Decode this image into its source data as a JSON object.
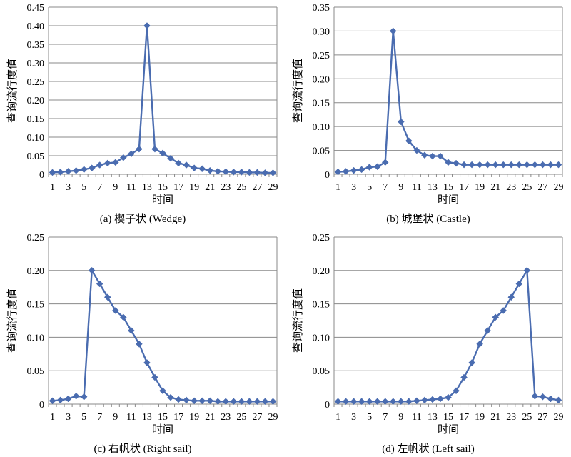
{
  "chart_data": [
    {
      "type": "line",
      "caption": "(a) 楔子状 (Wedge)",
      "xlabel": "时间",
      "ylabel": "查询流行度值",
      "ylim": [
        0,
        0.45
      ],
      "yticks": [
        "0",
        "0.05",
        "0.10",
        "0.15",
        "0.20",
        "0.25",
        "0.30",
        "0.35",
        "0.40",
        "0.45"
      ],
      "x": [
        1,
        2,
        3,
        4,
        5,
        6,
        7,
        8,
        9,
        10,
        11,
        12,
        13,
        14,
        15,
        16,
        17,
        18,
        19,
        20,
        21,
        22,
        23,
        24,
        25,
        26,
        27,
        28,
        29
      ],
      "xticks": [
        "1",
        "3",
        "5",
        "7",
        "9",
        "11",
        "13",
        "15",
        "17",
        "19",
        "21",
        "23",
        "25",
        "27",
        "29"
      ],
      "values": [
        0.005,
        0.006,
        0.008,
        0.01,
        0.013,
        0.017,
        0.025,
        0.03,
        0.032,
        0.045,
        0.055,
        0.068,
        0.4,
        0.068,
        0.057,
        0.043,
        0.03,
        0.025,
        0.017,
        0.015,
        0.01,
        0.008,
        0.007,
        0.006,
        0.006,
        0.005,
        0.005,
        0.004,
        0.004
      ],
      "grid": true,
      "color": "#4a6cb0"
    },
    {
      "type": "line",
      "caption": "(b) 城堡状 (Castle)",
      "xlabel": "时间",
      "ylabel": "查询流行度值",
      "ylim": [
        0,
        0.35
      ],
      "yticks": [
        "0",
        "0.05",
        "0.10",
        "0.15",
        "0.20",
        "0.25",
        "0.30",
        "0.35"
      ],
      "x": [
        1,
        2,
        3,
        4,
        5,
        6,
        7,
        8,
        9,
        10,
        11,
        12,
        13,
        14,
        15,
        16,
        17,
        18,
        19,
        20,
        21,
        22,
        23,
        24,
        25,
        26,
        27,
        28,
        29
      ],
      "xticks": [
        "1",
        "3",
        "5",
        "7",
        "9",
        "11",
        "13",
        "15",
        "17",
        "19",
        "21",
        "23",
        "25",
        "27",
        "29"
      ],
      "values": [
        0.005,
        0.006,
        0.008,
        0.01,
        0.015,
        0.016,
        0.025,
        0.3,
        0.11,
        0.07,
        0.05,
        0.04,
        0.038,
        0.038,
        0.025,
        0.023,
        0.02,
        0.02,
        0.02,
        0.02,
        0.02,
        0.02,
        0.02,
        0.02,
        0.02,
        0.02,
        0.02,
        0.02,
        0.02
      ],
      "grid": true,
      "color": "#4a6cb0"
    },
    {
      "type": "line",
      "caption": "(c) 右帆状 (Right sail)",
      "xlabel": "时间",
      "ylabel": "查询流行度值",
      "ylim": [
        0,
        0.25
      ],
      "yticks": [
        "0",
        "0.05",
        "0.10",
        "0.15",
        "0.20",
        "0.25"
      ],
      "x": [
        1,
        2,
        3,
        4,
        5,
        6,
        7,
        8,
        9,
        10,
        11,
        12,
        13,
        14,
        15,
        16,
        17,
        18,
        19,
        20,
        21,
        22,
        23,
        24,
        25,
        26,
        27,
        28,
        29
      ],
      "xticks": [
        "1",
        "3",
        "5",
        "7",
        "9",
        "11",
        "13",
        "15",
        "17",
        "19",
        "21",
        "23",
        "25",
        "27",
        "29"
      ],
      "values": [
        0.005,
        0.006,
        0.008,
        0.012,
        0.011,
        0.2,
        0.18,
        0.16,
        0.14,
        0.13,
        0.11,
        0.09,
        0.062,
        0.04,
        0.02,
        0.01,
        0.007,
        0.006,
        0.005,
        0.005,
        0.005,
        0.004,
        0.004,
        0.004,
        0.004,
        0.004,
        0.004,
        0.004,
        0.004
      ],
      "grid": true,
      "color": "#4a6cb0"
    },
    {
      "type": "line",
      "caption": "(d) 左帆状 (Left  sail)",
      "xlabel": "时间",
      "ylabel": "查询流行度值",
      "ylim": [
        0,
        0.25
      ],
      "yticks": [
        "0",
        "0.05",
        "0.10",
        "0.15",
        "0.20",
        "0.25"
      ],
      "x": [
        1,
        2,
        3,
        4,
        5,
        6,
        7,
        8,
        9,
        10,
        11,
        12,
        13,
        14,
        15,
        16,
        17,
        18,
        19,
        20,
        21,
        22,
        23,
        24,
        25,
        26,
        27,
        28,
        29
      ],
      "xticks": [
        "1",
        "3",
        "5",
        "7",
        "9",
        "11",
        "13",
        "15",
        "17",
        "19",
        "21",
        "23",
        "25",
        "27",
        "29"
      ],
      "values": [
        0.004,
        0.004,
        0.004,
        0.004,
        0.004,
        0.004,
        0.004,
        0.004,
        0.004,
        0.004,
        0.005,
        0.006,
        0.007,
        0.008,
        0.01,
        0.02,
        0.04,
        0.062,
        0.09,
        0.11,
        0.13,
        0.14,
        0.16,
        0.18,
        0.2,
        0.012,
        0.011,
        0.008,
        0.006
      ],
      "grid": true,
      "color": "#4a6cb0"
    }
  ]
}
